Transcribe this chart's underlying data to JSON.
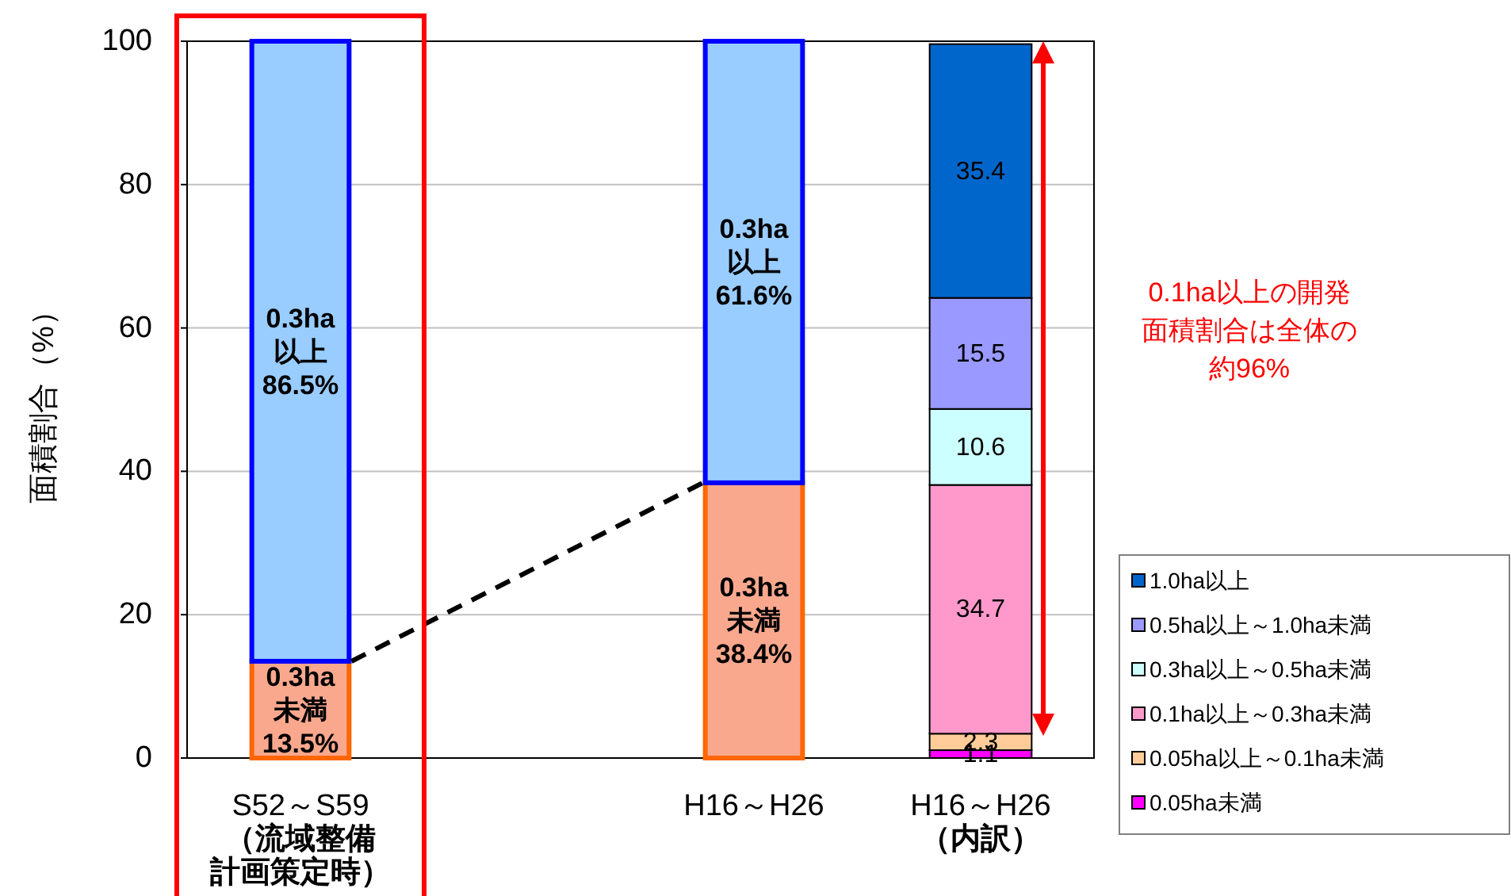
{
  "chart_data": {
    "type": "bar",
    "stacked": true,
    "categories": [
      "S52～S59（流域整備計画策定時）",
      null,
      "H16～H26",
      "H16～H26（内訳）"
    ],
    "ylabel": "面積割合（%）",
    "ylim": [
      0,
      100
    ],
    "yticks": [
      0,
      20,
      40,
      60,
      80,
      100
    ],
    "grid": "y",
    "legend": "right",
    "annotations": [
      "0.1ha以上の開発面積割合は全体の約96%"
    ],
    "series": [
      {
        "color": "#f9a88e",
        "values": [
          13.5,
          null,
          38.4,
          null
        ],
        "value_labels": [
          "0.3ha\n未満\n13.5%",
          null,
          "0.3ha\n未満\n38.4%",
          null
        ]
      },
      {
        "color": "#99ccff",
        "values": [
          86.5,
          null,
          61.6,
          null
        ],
        "value_labels": [
          "0.3ha\n以上\n86.5%",
          null,
          "0.3ha\n以上\n61.6%",
          null
        ]
      },
      {
        "name": "0.05ha未満",
        "color": "#ff00ff",
        "values": [
          null,
          null,
          null,
          1.1
        ],
        "value_labels": [
          null,
          null,
          null,
          "1.1"
        ]
      },
      {
        "name": "0.05ha以上～0.1ha未満",
        "color": "#ffcc99",
        "values": [
          null,
          null,
          null,
          2.3
        ],
        "value_labels": [
          null,
          null,
          null,
          "2.3"
        ]
      },
      {
        "name": "0.1ha以上～0.3ha未満",
        "color": "#ff99cc",
        "values": [
          null,
          null,
          null,
          34.7
        ],
        "value_labels": [
          null,
          null,
          null,
          "34.7"
        ]
      },
      {
        "name": "0.3ha以上～0.5ha未満",
        "color": "#ccffff",
        "values": [
          null,
          null,
          null,
          10.6
        ],
        "value_labels": [
          null,
          null,
          null,
          "10.6"
        ]
      },
      {
        "name": "0.5ha以上～1.0ha未満",
        "color": "#9999ff",
        "values": [
          null,
          null,
          null,
          15.5
        ],
        "value_labels": [
          null,
          null,
          null,
          "15.5"
        ]
      },
      {
        "name": "1.0ha以上",
        "color": "#0066cc",
        "values": [
          null,
          null,
          null,
          35.4
        ],
        "value_labels": [
          null,
          null,
          null,
          "35.4"
        ]
      }
    ]
  }
}
